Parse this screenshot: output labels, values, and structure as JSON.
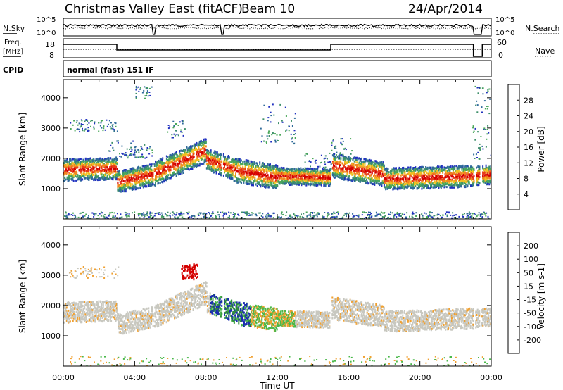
{
  "header": {
    "title": "Christmas Valley East (fitACF)",
    "beam": "Beam 10",
    "date": "24/Apr/2014"
  },
  "top_panels": {
    "nsky": {
      "label": "N.Sky",
      "ticks": [
        "10^5",
        "10^0"
      ]
    },
    "nsearch": {
      "label": "N.Search",
      "ticks": [
        "10^5",
        "10^0"
      ]
    },
    "freq": {
      "label_line1": "Freq.",
      "label_line2": "[MHz]",
      "ticks": [
        "18",
        "8"
      ]
    },
    "nave": {
      "label": "Nave",
      "ticks": [
        "60",
        "0"
      ]
    },
    "cpid": {
      "label": "CPID",
      "value": "normal (fast) 151 IF"
    }
  },
  "chart_data": [
    {
      "type": "heatmap",
      "name": "power",
      "ylabel": "Slant Range [km]",
      "yticks": [
        1000,
        2000,
        3000,
        4000
      ],
      "ylim": [
        0,
        4600
      ],
      "colorbar_label": "Power [dB]",
      "colorbar_ticks": [
        "4",
        "8",
        "12",
        "16",
        "20",
        "24",
        "28"
      ],
      "colors": [
        "#2030c0",
        "#2f6a9a",
        "#3d8f6a",
        "#4aa85a",
        "#f0c020",
        "#f08820",
        "#e83a18",
        "#d40000"
      ],
      "bands": [
        {
          "t": [
            0.0,
            3.0
          ],
          "center": [
            1650,
            1700
          ],
          "width": 450
        },
        {
          "t": [
            3.0,
            5.0
          ],
          "center": [
            1250,
            1500
          ],
          "width": 450
        },
        {
          "t": [
            5.0,
            8.0
          ],
          "center": [
            1500,
            2300
          ],
          "width": 500
        },
        {
          "t": [
            8.0,
            9.5
          ],
          "center": [
            2000,
            1700
          ],
          "width": 450
        },
        {
          "t": [
            9.5,
            12.0
          ],
          "center": [
            1650,
            1400
          ],
          "width": 500
        },
        {
          "t": [
            12.0,
            15.0
          ],
          "center": [
            1450,
            1400
          ],
          "width": 350
        },
        {
          "t": [
            15.0,
            18.0
          ],
          "center": [
            1800,
            1500
          ],
          "width": 500
        },
        {
          "t": [
            18.0,
            23.0
          ],
          "center": [
            1350,
            1450
          ],
          "width": 450
        },
        {
          "t": [
            23.0,
            24.0
          ],
          "center": [
            1450,
            1500
          ],
          "width": 400
        }
      ]
    },
    {
      "type": "heatmap",
      "name": "velocity",
      "ylabel": "Slant Range [km]",
      "yticks": [
        1000,
        2000,
        3000,
        4000
      ],
      "ylim": [
        0,
        4600
      ],
      "colorbar_label": "Velocity [m s-1]",
      "colorbar_ticks": [
        "200",
        "100",
        "50",
        "15",
        "-15",
        "-50",
        "-100",
        "-200"
      ],
      "colors": [
        "#1a2cb0",
        "#2e8a3a",
        "#4ab84a",
        "#9ad86a",
        "#c8c8c0",
        "#f0a030",
        "#e87018",
        "#e03010",
        "#d40000"
      ],
      "x": [
        "00:00",
        "04:00",
        "08:00",
        "12:00",
        "16:00",
        "20:00",
        "00:00"
      ],
      "xlabel": "Time UT",
      "xlim_hours": [
        0,
        24
      ]
    }
  ]
}
